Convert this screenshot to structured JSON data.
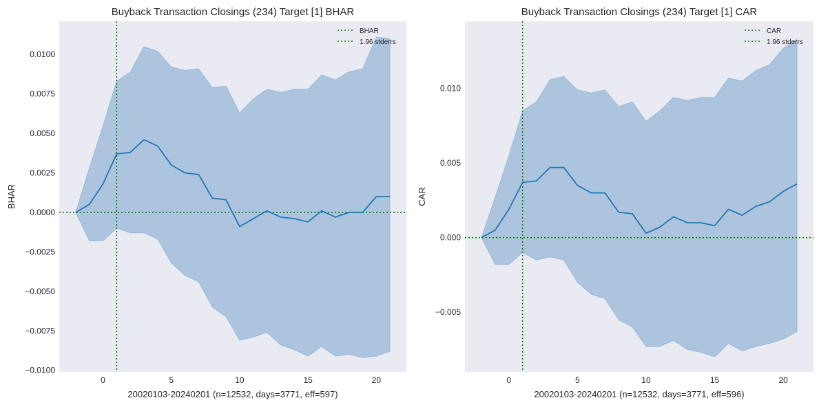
{
  "chart_data": [
    {
      "type": "area",
      "title": "Buyback Transaction Closings (234) Target [1] BHAR",
      "xlabel": "20020103-20240201 (n=12532, days=3771, eff=597)",
      "ylabel": "BHAR",
      "xlim": [
        -3.2,
        22.2
      ],
      "ylim": [
        -0.0101,
        0.0121
      ],
      "xticks": [
        0,
        5,
        10,
        15,
        20
      ],
      "yticks": [
        -0.01,
        -0.0075,
        -0.005,
        -0.0025,
        0.0,
        0.0025,
        0.005,
        0.0075,
        0.01
      ],
      "ytick_labels": [
        "−0.0100",
        "−0.0075",
        "−0.0050",
        "−0.0025",
        "0.0000",
        "0.0025",
        "0.0050",
        "0.0075",
        "0.0100"
      ],
      "grid": false,
      "legend_position": "top-right",
      "legend": [
        "BHAR",
        "1.96 stderrs"
      ],
      "vline_x": 1,
      "hline_y": 0,
      "x": [
        -2,
        -1,
        0,
        1,
        2,
        3,
        4,
        5,
        6,
        7,
        8,
        9,
        10,
        11,
        12,
        13,
        14,
        15,
        16,
        17,
        18,
        19,
        20,
        21
      ],
      "series": [
        {
          "name": "BHAR",
          "values": [
            0.0,
            0.0005,
            0.0018,
            0.0037,
            0.0038,
            0.0046,
            0.0042,
            0.003,
            0.0025,
            0.0024,
            0.0009,
            0.0008,
            -0.0009,
            -0.0004,
            0.0001,
            -0.0003,
            -0.0004,
            -0.0006,
            0.0001,
            -0.0003,
            0.0,
            0.0,
            0.001,
            0.001
          ]
        },
        {
          "name": "1.96 stderrs",
          "upper": [
            0.0,
            0.0028,
            0.0055,
            0.0083,
            0.0089,
            0.0105,
            0.0102,
            0.0092,
            0.009,
            0.0091,
            0.0079,
            0.008,
            0.0063,
            0.0072,
            0.0078,
            0.0076,
            0.0078,
            0.0078,
            0.0087,
            0.0084,
            0.0089,
            0.0091,
            0.0111,
            0.011
          ],
          "lower": [
            0.0,
            -0.0018,
            -0.0018,
            -0.001,
            -0.0013,
            -0.0013,
            -0.0017,
            -0.0032,
            -0.004,
            -0.0044,
            -0.006,
            -0.0066,
            -0.0081,
            -0.0079,
            -0.0076,
            -0.0084,
            -0.0087,
            -0.0091,
            -0.0085,
            -0.0091,
            -0.009,
            -0.0092,
            -0.0091,
            -0.0088
          ]
        }
      ]
    },
    {
      "type": "area",
      "title": "Buyback Transaction Closings (234) Target [1] CAR",
      "xlabel": "20020103-20240201 (n=12532, days=3771, eff=596)",
      "ylabel": "CAR",
      "xlim": [
        -3.2,
        22.2
      ],
      "ylim": [
        -0.009,
        0.0145
      ],
      "xticks": [
        0,
        5,
        10,
        15,
        20
      ],
      "yticks": [
        -0.005,
        0.0,
        0.005,
        0.01
      ],
      "ytick_labels": [
        "−0.005",
        "0.000",
        "0.005",
        "0.010"
      ],
      "grid": false,
      "legend_position": "top-right",
      "legend": [
        "CAR",
        "1.96 stderrs"
      ],
      "vline_x": 1,
      "hline_y": 0,
      "x": [
        -2,
        -1,
        0,
        1,
        2,
        3,
        4,
        5,
        6,
        7,
        8,
        9,
        10,
        11,
        12,
        13,
        14,
        15,
        16,
        17,
        18,
        19,
        20,
        21
      ],
      "series": [
        {
          "name": "CAR",
          "values": [
            0.0,
            0.0005,
            0.0019,
            0.0037,
            0.0038,
            0.0047,
            0.0047,
            0.0035,
            0.003,
            0.003,
            0.0017,
            0.0016,
            0.0003,
            0.0007,
            0.0014,
            0.001,
            0.001,
            0.0008,
            0.0019,
            0.0015,
            0.0021,
            0.0024,
            0.0031,
            0.0036
          ]
        },
        {
          "name": "1.96 stderrs",
          "upper": [
            0.0,
            0.0027,
            0.0055,
            0.0085,
            0.0091,
            0.0106,
            0.0108,
            0.0099,
            0.0097,
            0.0099,
            0.0088,
            0.0091,
            0.0078,
            0.0085,
            0.0094,
            0.0092,
            0.0094,
            0.0094,
            0.0107,
            0.0105,
            0.0112,
            0.0116,
            0.0127,
            0.0133
          ],
          "lower": [
            0.0,
            -0.0018,
            -0.0018,
            -0.001,
            -0.0015,
            -0.0013,
            -0.0015,
            -0.003,
            -0.0038,
            -0.0041,
            -0.0055,
            -0.006,
            -0.0073,
            -0.0073,
            -0.0069,
            -0.0075,
            -0.0077,
            -0.008,
            -0.0071,
            -0.0076,
            -0.0073,
            -0.0071,
            -0.0068,
            -0.0063
          ]
        }
      ]
    }
  ],
  "colors": {
    "line": "#1f77b4",
    "band_fill": "#6f9ec9",
    "band_edge": "#1f77b4",
    "ref_lines": "#008000",
    "axes_bg": "#eaeaf2"
  }
}
